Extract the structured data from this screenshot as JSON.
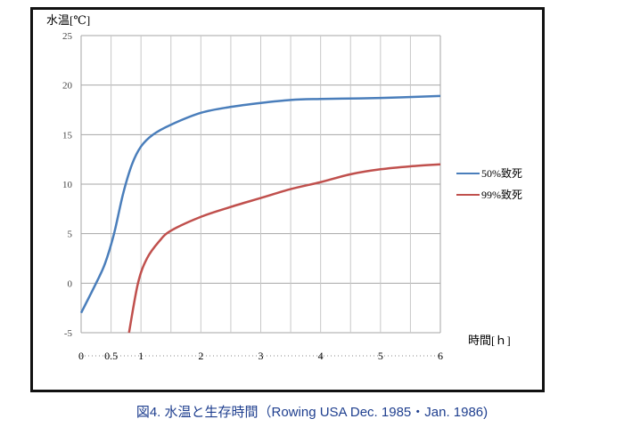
{
  "chart_data": {
    "type": "line",
    "ylabel": "水温[℃]",
    "xlabel": "時間[ｈ]",
    "caption": "図4.  水温と生存時間（Rowing USA Dec. 1985・Jan. 1986)",
    "ylim": [
      -5,
      25
    ],
    "xlim": [
      0,
      6
    ],
    "yticks": [
      25,
      20,
      15,
      10,
      5,
      0,
      -5
    ],
    "xticks": [
      {
        "v": 0,
        "label": "0"
      },
      {
        "v": 0.5,
        "label": "0.5"
      },
      {
        "v": 1,
        "label": "1"
      },
      {
        "v": 2,
        "label": "2"
      },
      {
        "v": 3,
        "label": "3"
      },
      {
        "v": 4,
        "label": "4"
      },
      {
        "v": 5,
        "label": "5"
      },
      {
        "v": 6,
        "label": "6"
      }
    ],
    "grid": true,
    "legend_position": "right",
    "series": [
      {
        "name": "50%致死",
        "color": "#4a7ebb",
        "points": [
          [
            0,
            -3
          ],
          [
            0.25,
            0
          ],
          [
            0.4,
            2
          ],
          [
            0.55,
            5
          ],
          [
            0.7,
            9
          ],
          [
            0.85,
            12
          ],
          [
            1.0,
            13.8
          ],
          [
            1.2,
            15
          ],
          [
            1.5,
            16
          ],
          [
            2.0,
            17.2
          ],
          [
            2.5,
            17.8
          ],
          [
            3.0,
            18.2
          ],
          [
            3.5,
            18.5
          ],
          [
            4.0,
            18.6
          ],
          [
            5.0,
            18.7
          ],
          [
            6.0,
            18.9
          ]
        ]
      },
      {
        "name": "99%致死",
        "color": "#c0504d",
        "points": [
          [
            0.8,
            -5
          ],
          [
            0.95,
            0
          ],
          [
            1.1,
            2.5
          ],
          [
            1.3,
            4.2
          ],
          [
            1.5,
            5.3
          ],
          [
            2.0,
            6.7
          ],
          [
            2.5,
            7.7
          ],
          [
            3.0,
            8.6
          ],
          [
            3.5,
            9.5
          ],
          [
            4.0,
            10.2
          ],
          [
            4.5,
            11
          ],
          [
            5.0,
            11.5
          ],
          [
            5.5,
            11.8
          ],
          [
            6.0,
            12
          ]
        ]
      }
    ]
  }
}
